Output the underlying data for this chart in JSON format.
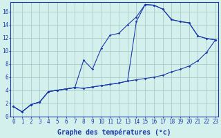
{
  "title": "",
  "xlabel": "Graphe des températures (°c)",
  "background_color": "#d4f0ec",
  "grid_color": "#aaccc8",
  "line_color": "#1a3aaa",
  "hours": [
    0,
    1,
    2,
    3,
    4,
    5,
    6,
    7,
    8,
    9,
    10,
    11,
    12,
    13,
    14,
    15,
    16,
    17,
    18,
    19,
    20,
    21,
    22,
    23
  ],
  "temp_curve": [
    1.5,
    0.7,
    1.8,
    2.2,
    3.8,
    4.0,
    4.2,
    4.4,
    8.6,
    7.2,
    10.4,
    12.4,
    12.7,
    14.0,
    15.2,
    17.1,
    17.0,
    16.4,
    14.8,
    14.5,
    14.3,
    12.3,
    11.9,
    11.7
  ],
  "min_line": [
    1.5,
    0.7,
    1.8,
    2.2,
    3.8,
    4.0,
    4.2,
    4.4,
    4.3,
    4.5,
    4.7,
    4.9,
    5.1,
    5.4,
    5.6,
    5.8,
    6.0,
    6.3,
    6.8,
    7.2,
    7.7,
    8.5,
    9.8,
    11.7
  ],
  "max_line": [
    1.5,
    0.7,
    1.8,
    2.2,
    3.8,
    4.0,
    4.2,
    4.4,
    4.3,
    4.5,
    4.7,
    4.9,
    5.1,
    5.4,
    14.5,
    17.1,
    17.0,
    16.4,
    14.8,
    14.5,
    14.3,
    12.3,
    11.9,
    11.7
  ],
  "ylim": [
    0,
    17.5
  ],
  "yticks": [
    0,
    2,
    4,
    6,
    8,
    10,
    12,
    14,
    16
  ],
  "xlim": [
    -0.3,
    23.3
  ],
  "tick_fontsize": 5.5,
  "label_fontsize": 7
}
